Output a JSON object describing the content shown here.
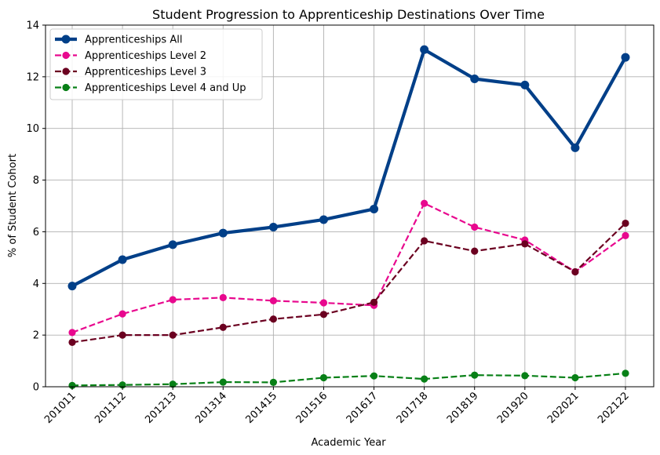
{
  "chart_data": {
    "type": "line",
    "title": "Student Progression to Apprenticeship Destinations Over Time",
    "xlabel": "Academic Year",
    "ylabel": "% of Student Cohort",
    "categories": [
      "201011",
      "201112",
      "201213",
      "201314",
      "201415",
      "201516",
      "201617",
      "201718",
      "201819",
      "201920",
      "202021",
      "202122"
    ],
    "ylim": [
      0,
      14
    ],
    "yticks": [
      0,
      2,
      4,
      6,
      8,
      10,
      12,
      14
    ],
    "grid": true,
    "legend_position": "top-left",
    "series": [
      {
        "name": "Apprenticeships All",
        "color": "#003f88",
        "style": "solid",
        "values": [
          3.9,
          4.92,
          5.5,
          5.95,
          6.18,
          6.47,
          6.88,
          13.05,
          11.92,
          11.68,
          9.25,
          12.75
        ]
      },
      {
        "name": "Apprenticeships Level 2",
        "color": "#e8088e",
        "style": "dashed",
        "values": [
          2.1,
          2.82,
          3.37,
          3.45,
          3.33,
          3.25,
          3.15,
          7.1,
          6.18,
          5.68,
          4.45,
          5.85
        ]
      },
      {
        "name": "Apprenticeships Level 3",
        "color": "#6b0020",
        "style": "dashed",
        "values": [
          1.72,
          2.0,
          2.0,
          2.3,
          2.62,
          2.8,
          3.27,
          5.65,
          5.25,
          5.53,
          4.45,
          6.33
        ]
      },
      {
        "name": "Apprenticeships Level 4 and Up",
        "color": "#088017",
        "style": "dashed",
        "values": [
          0.05,
          0.07,
          0.1,
          0.18,
          0.17,
          0.35,
          0.42,
          0.3,
          0.45,
          0.43,
          0.35,
          0.52
        ]
      }
    ]
  }
}
